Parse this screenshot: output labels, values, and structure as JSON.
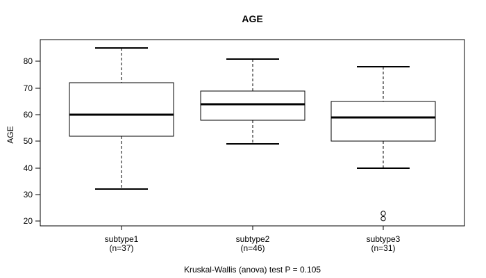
{
  "chart_data": {
    "type": "boxplot",
    "title": "AGE",
    "ylabel": "AGE",
    "xlabel": "",
    "caption": "Kruskal-Wallis (anova) test P = 0.105",
    "ylim": [
      18.3,
      88.2
    ],
    "yticks": [
      20,
      30,
      40,
      50,
      60,
      70,
      80
    ],
    "xlim": [
      0.38,
      3.62
    ],
    "box_width": 0.8,
    "cap_width": 0.4,
    "grid": false,
    "groups": [
      {
        "label": "subtype1",
        "n_label": "(n=37)",
        "position": 1,
        "whisker_low": 32,
        "q1": 52,
        "median": 60,
        "q3": 72,
        "whisker_high": 85,
        "outliers": []
      },
      {
        "label": "subtype2",
        "n_label": "(n=46)",
        "position": 2,
        "whisker_low": 49,
        "q1": 58,
        "median": 64,
        "q3": 69,
        "whisker_high": 81,
        "outliers": []
      },
      {
        "label": "subtype3",
        "n_label": "(n=31)",
        "position": 3,
        "whisker_low": 40,
        "q1": 50,
        "median": 59,
        "q3": 65,
        "whisker_high": 78,
        "outliers": [
          23,
          21
        ]
      }
    ],
    "colors": {
      "box_border": "#000000",
      "box_fill": "#ffffff",
      "median": "#000000",
      "whisker": "#000000",
      "frame": "#000000",
      "text": "#000000",
      "background": "#ffffff"
    }
  }
}
